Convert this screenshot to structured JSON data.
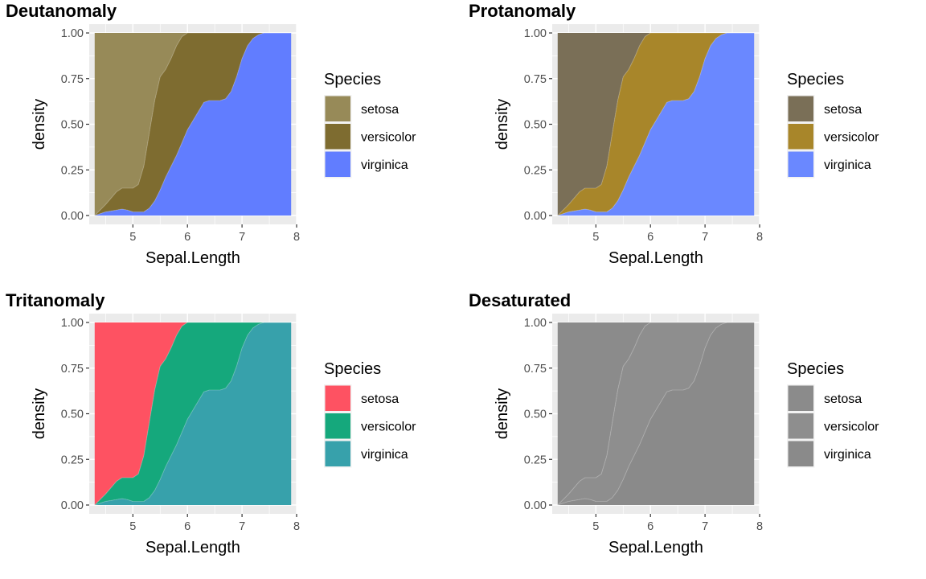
{
  "chart_data": [
    {
      "type": "area",
      "title": "Deutanomaly",
      "xlabel": "Sepal.Length",
      "ylabel": "density",
      "xlim": [
        4.2,
        8.0
      ],
      "ylim": [
        0,
        1
      ],
      "x_ticks": [
        5,
        6,
        7,
        8
      ],
      "y_ticks": [
        "0.00",
        "0.25",
        "0.50",
        "0.75",
        "1.00"
      ],
      "legend_title": "Species",
      "legend_position": "right",
      "stacked_fill": true,
      "grid": true,
      "series": [
        {
          "name": "setosa",
          "color": "#978a58"
        },
        {
          "name": "versicolor",
          "color": "#7e6c30"
        },
        {
          "name": "virginica",
          "color": "#617dff"
        }
      ]
    },
    {
      "type": "area",
      "title": "Protanomaly",
      "xlabel": "Sepal.Length",
      "ylabel": "density",
      "xlim": [
        4.2,
        8.0
      ],
      "ylim": [
        0,
        1
      ],
      "x_ticks": [
        5,
        6,
        7,
        8
      ],
      "y_ticks": [
        "0.00",
        "0.25",
        "0.50",
        "0.75",
        "1.00"
      ],
      "legend_title": "Species",
      "legend_position": "right",
      "stacked_fill": true,
      "grid": true,
      "series": [
        {
          "name": "setosa",
          "color": "#7a6f57"
        },
        {
          "name": "versicolor",
          "color": "#a8862a"
        },
        {
          "name": "virginica",
          "color": "#6a88ff"
        }
      ]
    },
    {
      "type": "area",
      "title": "Tritanomaly",
      "xlabel": "Sepal.Length",
      "ylabel": "density",
      "xlim": [
        4.2,
        8.0
      ],
      "ylim": [
        0,
        1
      ],
      "x_ticks": [
        5,
        6,
        7,
        8
      ],
      "y_ticks": [
        "0.00",
        "0.25",
        "0.50",
        "0.75",
        "1.00"
      ],
      "legend_title": "Species",
      "legend_position": "right",
      "stacked_fill": true,
      "grid": true,
      "series": [
        {
          "name": "setosa",
          "color": "#fe5262"
        },
        {
          "name": "versicolor",
          "color": "#15a87c"
        },
        {
          "name": "virginica",
          "color": "#37a1ab"
        }
      ]
    },
    {
      "type": "area",
      "title": "Desaturated",
      "xlabel": "Sepal.Length",
      "ylabel": "density",
      "xlim": [
        4.2,
        8.0
      ],
      "ylim": [
        0,
        1
      ],
      "x_ticks": [
        5,
        6,
        7,
        8
      ],
      "y_ticks": [
        "0.00",
        "0.25",
        "0.50",
        "0.75",
        "1.00"
      ],
      "legend_title": "Species",
      "legend_position": "right",
      "stacked_fill": true,
      "grid": true,
      "series": [
        {
          "name": "setosa",
          "color": "#8b8b8b"
        },
        {
          "name": "versicolor",
          "color": "#8e8e8e"
        },
        {
          "name": "virginica",
          "color": "#8a8a8a"
        }
      ]
    }
  ],
  "boundaries": {
    "x": [
      4.3,
      4.5,
      4.7,
      4.8,
      4.9,
      5.0,
      5.1,
      5.2,
      5.3,
      5.4,
      5.5,
      5.6,
      5.7,
      5.8,
      5.9,
      6.0,
      6.1,
      6.2,
      6.3,
      6.4,
      6.5,
      6.6,
      6.7,
      6.8,
      6.9,
      7.0,
      7.1,
      7.2,
      7.3,
      7.4,
      7.5,
      7.6,
      7.7,
      7.8,
      7.9
    ],
    "setosa_top": [
      1.0,
      1.0,
      1.0,
      1.0,
      1.0,
      1.0,
      1.0,
      1.0,
      1.0,
      1.0,
      1.0,
      1.0,
      1.0,
      1.0,
      1.0,
      1.0,
      1.0,
      1.0,
      1.0,
      1.0,
      1.0,
      1.0,
      1.0,
      1.0,
      1.0,
      1.0,
      1.0,
      1.0,
      1.0,
      1.0,
      1.0,
      1.0,
      1.0,
      1.0,
      1.0
    ],
    "versicolor_top": [
      0.0,
      0.06,
      0.13,
      0.15,
      0.15,
      0.15,
      0.17,
      0.27,
      0.45,
      0.63,
      0.76,
      0.8,
      0.86,
      0.93,
      0.98,
      1.0,
      1.0,
      1.0,
      1.0,
      1.0,
      1.0,
      1.0,
      1.0,
      1.0,
      1.0,
      1.0,
      1.0,
      1.0,
      1.0,
      1.0,
      1.0,
      1.0,
      1.0,
      1.0,
      1.0
    ],
    "virginica_top": [
      0.0,
      0.02,
      0.03,
      0.035,
      0.03,
      0.02,
      0.02,
      0.02,
      0.04,
      0.08,
      0.14,
      0.21,
      0.27,
      0.33,
      0.4,
      0.47,
      0.52,
      0.57,
      0.62,
      0.63,
      0.63,
      0.63,
      0.64,
      0.68,
      0.76,
      0.86,
      0.93,
      0.97,
      0.99,
      1.0,
      1.0,
      1.0,
      1.0,
      1.0,
      1.0
    ]
  }
}
